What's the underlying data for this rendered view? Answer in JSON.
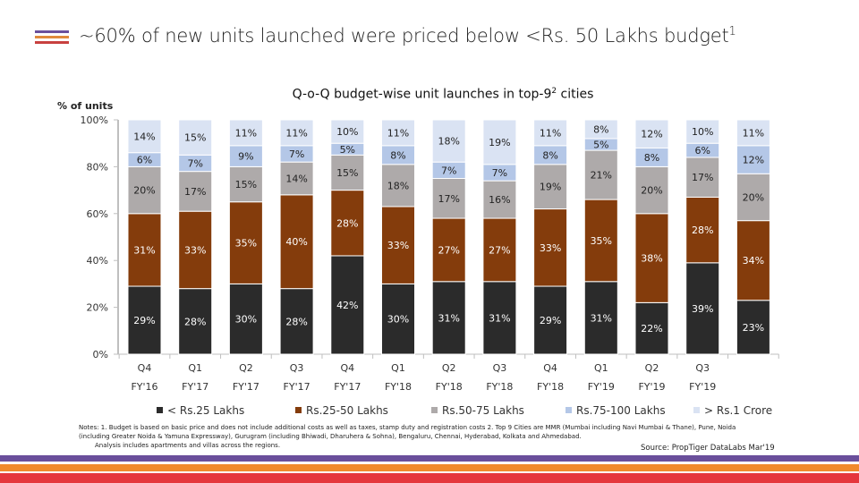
{
  "header": {
    "title": "~60% of new units launched were priced below <Rs. 50 Lakhs budget",
    "title_superscript": "1",
    "icon": "three-line-menu-icon",
    "icon_colors": [
      "#6a4f9b",
      "#e08a3c",
      "#c8413f"
    ]
  },
  "chart_data": {
    "type": "bar",
    "stacked": true,
    "percent": true,
    "title": "Q-o-Q budget-wise unit launches in top-9",
    "title_superscript": "2",
    "title_suffix": " cities",
    "xlabel": "",
    "ylabel": "% of units",
    "ylim": [
      0,
      100
    ],
    "yticks": [
      "0%",
      "20%",
      "40%",
      "60%",
      "80%",
      "100%"
    ],
    "ytick_values": [
      0,
      20,
      40,
      60,
      80,
      100
    ],
    "grid": false,
    "legend_position": "bottom",
    "categories": [
      [
        "Q4",
        "FY'16"
      ],
      [
        "Q1",
        "FY'17"
      ],
      [
        "Q2",
        "FY'17"
      ],
      [
        "Q3",
        "FY'17"
      ],
      [
        "Q4",
        "FY'17"
      ],
      [
        "Q1",
        "FY'18"
      ],
      [
        "Q2",
        "FY'18"
      ],
      [
        "Q3",
        "FY'18"
      ],
      [
        "Q4",
        "FY'18"
      ],
      [
        "Q1",
        "FY'19"
      ],
      [
        "Q2",
        "FY'19"
      ],
      [
        "Q3",
        "FY'19"
      ],
      [
        "",
        ""
      ]
    ],
    "series": [
      {
        "name": "< Rs.25 Lakhs",
        "color": "#2b2b2b",
        "label_color": "#ffffff",
        "values": [
          29,
          28,
          30,
          28,
          42,
          30,
          31,
          31,
          29,
          31,
          22,
          39,
          23
        ]
      },
      {
        "name": "Rs.25-50 Lakhs",
        "color": "#843c0c",
        "label_color": "#ffffff",
        "values": [
          31,
          33,
          35,
          40,
          28,
          33,
          27,
          27,
          33,
          35,
          38,
          28,
          34
        ]
      },
      {
        "name": "Rs.50-75 Lakhs",
        "color": "#aeaaaa",
        "label_color": "#222222",
        "values": [
          20,
          17,
          15,
          14,
          15,
          18,
          17,
          16,
          19,
          21,
          20,
          17,
          20
        ]
      },
      {
        "name": "Rs.75-100 Lakhs",
        "color": "#b4c7e7",
        "label_color": "#222222",
        "values": [
          6,
          7,
          9,
          7,
          5,
          8,
          7,
          7,
          8,
          5,
          8,
          6,
          12
        ]
      },
      {
        "name": "> Rs.1 Crore",
        "color": "#dae3f3",
        "label_color": "#222222",
        "values": [
          14,
          15,
          11,
          11,
          10,
          11,
          18,
          19,
          11,
          8,
          12,
          10,
          11
        ]
      }
    ]
  },
  "notes": {
    "line1": "Notes: 1. Budget is based on basic price and does not include additional costs as well as taxes, stamp duty and registration costs 2. Top 9 Cities are MMR (Mumbai including Navi Mumbai & Thane), Pune, Noida",
    "line2": "(including Greater Noida & Yamuna Expressway), Gurugram (including Bhiwadi, Dharuhera & Sohna), Bengaluru, Chennai, Hyderabad, Kolkata and Ahmedabad.",
    "line3": "Analysis includes apartments and villas across the regions."
  },
  "source": "Source: PropTiger DataLabs Mar'19",
  "footer_stripes": [
    "#6a4f9b",
    "#f08a2c",
    "#e5373d"
  ]
}
